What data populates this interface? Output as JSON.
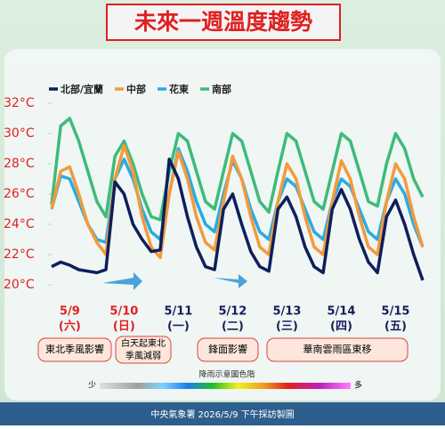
{
  "chart_data": {
    "type": "line",
    "title": "未來一週溫度趨勢",
    "categories": [
      null,
      null,
      "5/9",
      null,
      null,
      null,
      null,
      null,
      "5/10",
      null,
      null,
      null,
      null,
      null,
      "5/11",
      null,
      null,
      null,
      null,
      null,
      "5/12",
      null,
      null,
      null,
      null,
      null,
      "5/13",
      null,
      null,
      null,
      null,
      null,
      "5/14",
      null,
      null,
      null,
      null,
      null,
      "5/15",
      null,
      null,
      null
    ],
    "weekdays": [
      null,
      null,
      "(六)",
      null,
      null,
      null,
      null,
      null,
      "(日)",
      null,
      null,
      null,
      null,
      null,
      "(一)",
      null,
      null,
      null,
      null,
      null,
      "(二)",
      null,
      null,
      null,
      null,
      null,
      "(三)",
      null,
      null,
      null,
      null,
      null,
      "(四)",
      null,
      null,
      null,
      null,
      null,
      "(五)",
      null,
      null,
      null
    ],
    "weekend_color": "#e02020",
    "weekend_indices": [
      2,
      8
    ],
    "ylim": [
      19,
      33
    ],
    "yticks": [
      {
        "value": 20,
        "label": "20°C"
      },
      {
        "value": 22,
        "label": "22°C"
      },
      {
        "value": 24,
        "label": "24°C"
      },
      {
        "value": 26,
        "label": "26°C"
      },
      {
        "value": 28,
        "label": "28°C"
      },
      {
        "value": 30,
        "label": "30°C"
      },
      {
        "value": 32,
        "label": "32°C"
      }
    ],
    "series": [
      {
        "name": "北部/宜蘭",
        "color": "#0d1f5c",
        "values": [
          21.2,
          21.5,
          21.3,
          21,
          20.9,
          20.8,
          21,
          26.8,
          26,
          24,
          23,
          22.2,
          22.3,
          28.3,
          27,
          24.5,
          22.5,
          21.2,
          21,
          25,
          26,
          24,
          22.2,
          21.2,
          20.9,
          25,
          25.8,
          24.5,
          22.5,
          21.2,
          20.8,
          25,
          26.3,
          25,
          23,
          21.5,
          20.8,
          24.5,
          25.6,
          24,
          22,
          20.3
        ]
      },
      {
        "name": "中部",
        "color": "#f39a3c",
        "values": [
          25,
          27.5,
          27.8,
          26,
          24,
          22.8,
          22,
          27,
          29.2,
          27.5,
          24.5,
          22.5,
          21.8,
          26,
          28.8,
          27,
          24.5,
          22.8,
          22.3,
          25.5,
          28.5,
          27,
          24.5,
          22.5,
          22,
          25.5,
          28,
          27,
          24.5,
          22.5,
          22,
          25.5,
          28.2,
          27,
          24.5,
          22.5,
          22,
          25.5,
          28,
          27,
          24.5,
          22.5
        ]
      },
      {
        "name": "花東",
        "color": "#29abe2",
        "values": [
          25,
          27.2,
          27,
          25.5,
          24,
          23,
          22.8,
          27,
          28.3,
          27,
          25,
          23.5,
          23,
          26,
          29,
          27.5,
          25.5,
          24,
          23.5,
          26,
          28.2,
          27,
          25,
          23.5,
          23,
          25.5,
          27,
          26.5,
          25,
          23.5,
          23,
          25.5,
          27,
          26.5,
          25,
          23.5,
          23,
          25.5,
          27,
          26,
          24,
          22.5
        ]
      },
      {
        "name": "南部",
        "color": "#3dbb7a",
        "values": [
          25.3,
          30.5,
          31,
          29.5,
          27.5,
          25.5,
          24.5,
          28.5,
          29.5,
          28,
          26,
          24.5,
          24.3,
          27.5,
          30,
          29.5,
          27.5,
          25.5,
          25,
          27.5,
          30,
          29.5,
          27.5,
          25.5,
          24.8,
          27.5,
          30,
          29.5,
          27.5,
          25.5,
          25,
          27.5,
          30,
          29.5,
          27.5,
          25.5,
          25.2,
          28,
          30,
          29,
          27,
          25.8
        ]
      }
    ],
    "annotations": [
      "東北季風影響",
      "白天起東北",
      "季風減弱",
      "鋒面影響",
      "華南雲雨區東移"
    ],
    "rain_scale": {
      "title": "降雨示意圖色階",
      "low": "少",
      "high": "多"
    },
    "footer": "中央氣象署 2026/5/9 下午採訪製圖"
  }
}
